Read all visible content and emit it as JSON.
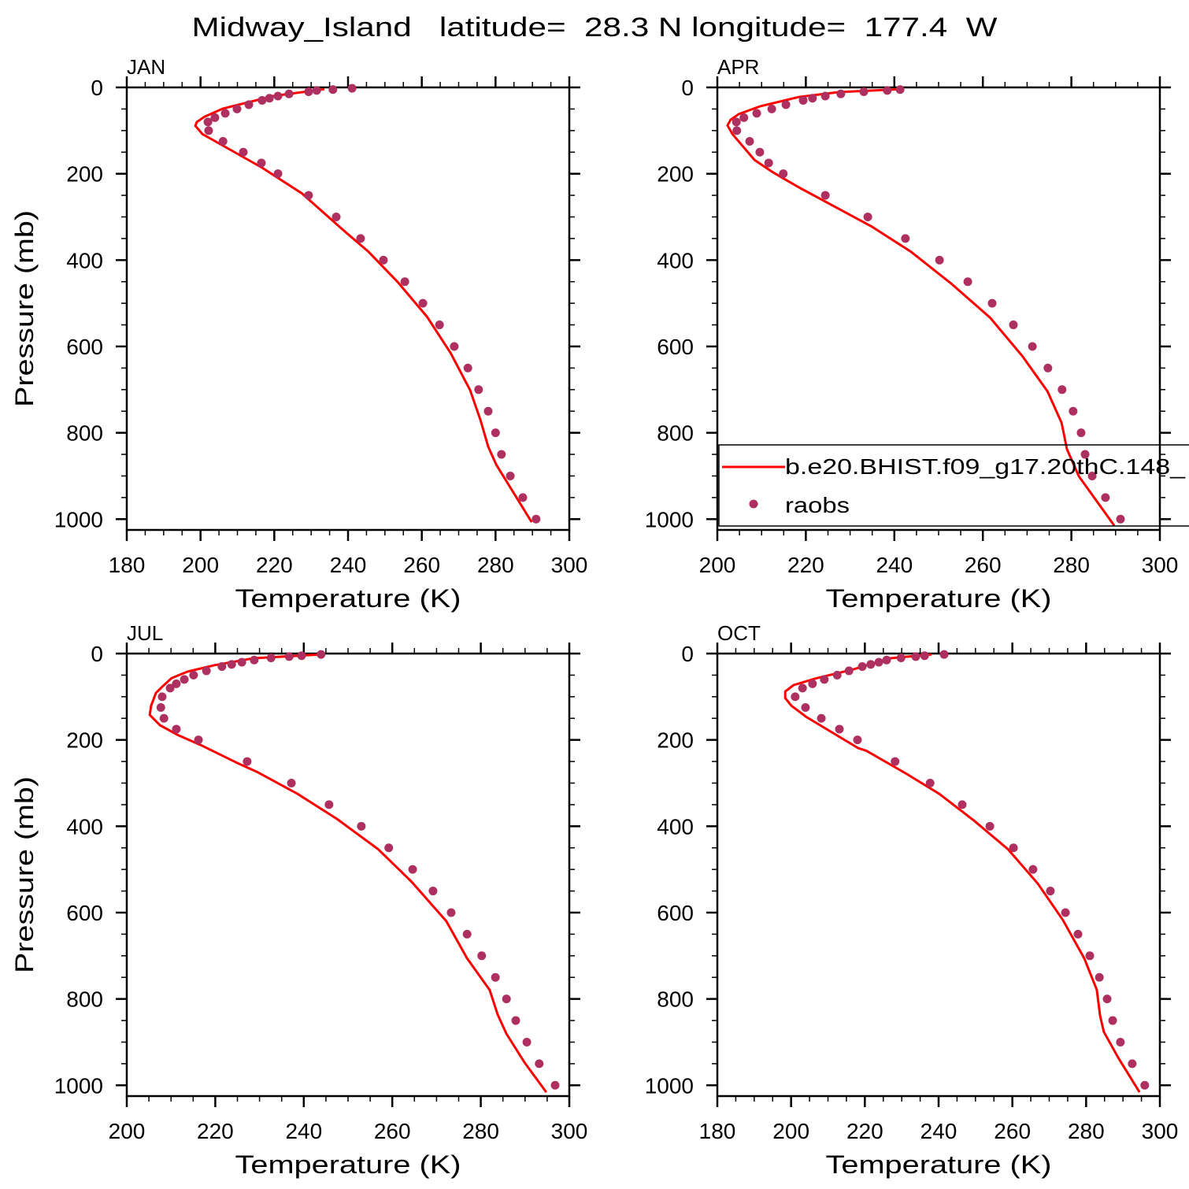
{
  "figure_title": "Midway_Island   latitude=  28.3 N longitude=  177.4  W",
  "colors": {
    "model": "#ff0000",
    "raobs": "#ad3060",
    "axes": "#000000"
  },
  "legend": {
    "panel": "APR",
    "entries": [
      {
        "label": "b.e20.BHIST.f09_g17.20thC.148_",
        "marker": "line",
        "color": "#ff0000"
      },
      {
        "label": "raobs",
        "marker": "dot",
        "color": "#ad3060"
      }
    ]
  },
  "chart_data": [
    {
      "type": "line",
      "title": "JAN",
      "xlabel": "Temperature (K)",
      "ylabel": "Pressure (mb)",
      "xlim": [
        180,
        300
      ],
      "ylim": [
        0,
        1025
      ],
      "y_inverted": true,
      "xticks": [
        180,
        200,
        220,
        240,
        260,
        280,
        300
      ],
      "yticks": [
        0,
        200,
        400,
        600,
        800,
        1000
      ],
      "series": [
        {
          "name": "b.e20.BHIST.f09_g17.20thC.148_",
          "style": "line",
          "T": [
            233.6,
            219.7,
            206.1,
            201.1,
            199.0,
            198.6,
            200.5,
            206.1,
            216.7,
            227.4,
            238.9,
            245.6,
            253.5,
            261.4,
            267.8,
            273.1,
            275.9,
            278.0,
            280.2,
            289.8
          ],
          "p": [
            4,
            20,
            49,
            68,
            80,
            89,
            108,
            135,
            186,
            245,
            332,
            381,
            451,
            531,
            615,
            701,
            770,
            832,
            874,
            1007
          ]
        },
        {
          "name": "raobs",
          "style": "dots",
          "T": [
            241.1,
            235.9,
            231.5,
            229.3,
            224.0,
            221.0,
            218.7,
            216.7,
            213.1,
            209.9,
            206.7,
            203.9,
            202.0,
            202.2,
            206.1,
            211.6,
            216.5,
            221.0,
            229.3,
            236.8,
            243.4,
            249.6,
            255.4,
            260.3,
            264.8,
            268.8,
            272.5,
            275.4,
            278.0,
            280.0,
            281.6,
            284.0,
            287.4,
            291.0
          ],
          "p": [
            2,
            5,
            7,
            10,
            15,
            20,
            25,
            30,
            40,
            50,
            60,
            70,
            80,
            100,
            125,
            150,
            175,
            200,
            250,
            300,
            350,
            400,
            450,
            500,
            550,
            600,
            650,
            700,
            750,
            800,
            850,
            900,
            950,
            1000
          ]
        }
      ]
    },
    {
      "type": "line",
      "title": "APR",
      "xlabel": "Temperature (K)",
      "ylabel": "",
      "xlim": [
        200,
        300
      ],
      "ylim": [
        0,
        1025
      ],
      "y_inverted": true,
      "xticks": [
        200,
        220,
        240,
        260,
        280,
        300
      ],
      "yticks": [
        0,
        200,
        400,
        600,
        800,
        1000
      ],
      "series": [
        {
          "name": "b.e20.BHIST.f09_g17.20thC.148_",
          "style": "line",
          "T": [
            241.3,
            227.4,
            218.5,
            209.6,
            204.8,
            203.0,
            202.3,
            203.4,
            208.4,
            212.3,
            218.5,
            230.5,
            235.0,
            243.8,
            252.8,
            261.6,
            268.9,
            274.6,
            277.8,
            279.0,
            281.7,
            289.7
          ],
          "p": [
            4,
            11,
            22,
            44,
            62,
            75,
            88,
            108,
            168,
            195,
            232,
            298,
            323,
            381,
            454,
            533,
            622,
            704,
            777,
            838,
            901,
            1015
          ]
        },
        {
          "name": "raobs",
          "style": "dots",
          "T": [
            241.3,
            238.4,
            233.1,
            227.9,
            224.4,
            221.5,
            219.4,
            215.5,
            212.3,
            208.9,
            206.0,
            204.3,
            204.4,
            207.3,
            209.6,
            211.6,
            214.9,
            224.4,
            234.0,
            242.5,
            250.2,
            256.6,
            262.1,
            266.9,
            271.2,
            274.7,
            277.9,
            280.4,
            282.2,
            283.1,
            284.7,
            287.7,
            291.1
          ],
          "p": [
            5,
            7,
            10,
            15,
            20,
            25,
            30,
            40,
            50,
            60,
            70,
            80,
            100,
            125,
            150,
            175,
            200,
            250,
            300,
            350,
            400,
            450,
            500,
            550,
            600,
            650,
            700,
            750,
            800,
            850,
            900,
            950,
            1000
          ]
        }
      ]
    },
    {
      "type": "line",
      "title": "JUL",
      "xlabel": "Temperature (K)",
      "ylabel": "Pressure (mb)",
      "xlim": [
        200,
        300
      ],
      "ylim": [
        0,
        1025
      ],
      "y_inverted": true,
      "xticks": [
        200,
        220,
        240,
        260,
        280,
        300
      ],
      "yticks": [
        0,
        200,
        400,
        600,
        800,
        1000
      ],
      "series": [
        {
          "name": "b.e20.BHIST.f09_g17.20thC.148_",
          "style": "line",
          "T": [
            243.9,
            228.6,
            219.8,
            213.7,
            210.1,
            208.2,
            206.6,
            205.5,
            205.2,
            207.5,
            211.4,
            216.7,
            224.7,
            229.6,
            238.6,
            247.5,
            256.8,
            264.4,
            272.2,
            276.9,
            282.0,
            283.8,
            285.8,
            290.0,
            294.8
          ],
          "p": [
            2,
            11,
            27,
            42,
            57,
            75,
            91,
            121,
            142,
            166,
            188,
            212,
            252,
            275,
            325,
            383,
            453,
            529,
            620,
            706,
            779,
            836,
            881,
            949,
            1016
          ]
        },
        {
          "name": "raobs",
          "style": "dots",
          "T": [
            243.9,
            239.5,
            236.7,
            232.6,
            228.8,
            226.0,
            223.7,
            221.5,
            218.0,
            215.1,
            213.0,
            211.2,
            209.8,
            208.0,
            207.7,
            208.4,
            211.2,
            216.2,
            227.2,
            237.2,
            245.7,
            253.0,
            259.2,
            264.6,
            269.2,
            273.3,
            276.9,
            280.2,
            283.3,
            285.8,
            287.9,
            290.4,
            293.2,
            296.8
          ],
          "p": [
            2,
            5,
            7,
            10,
            15,
            20,
            25,
            30,
            40,
            50,
            60,
            70,
            80,
            100,
            125,
            150,
            175,
            200,
            250,
            300,
            350,
            400,
            450,
            500,
            550,
            600,
            650,
            700,
            750,
            800,
            850,
            900,
            950,
            1000
          ]
        }
      ]
    },
    {
      "type": "line",
      "title": "OCT",
      "xlabel": "Temperature (K)",
      "ylabel": "",
      "xlim": [
        180,
        300
      ],
      "ylim": [
        0,
        1025
      ],
      "y_inverted": true,
      "xticks": [
        180,
        200,
        220,
        240,
        260,
        280,
        300
      ],
      "yticks": [
        0,
        200,
        400,
        600,
        800,
        1000
      ],
      "series": [
        {
          "name": "b.e20.BHIST.f09_g17.20thC.148_",
          "style": "line",
          "T": [
            238.1,
            226.8,
            216.7,
            206.9,
            200.7,
            198.4,
            198.4,
            200.1,
            204.0,
            218.2,
            220.4,
            231.0,
            240.2,
            249.6,
            258.8,
            266.9,
            273.7,
            279.5,
            282.9,
            283.8,
            284.8,
            288.7,
            294.5
          ],
          "p": [
            2,
            11,
            37,
            57,
            73,
            88,
            103,
            121,
            146,
            219,
            225,
            277,
            325,
            387,
            453,
            533,
            617,
            706,
            779,
            839,
            876,
            936,
            1016
          ]
        },
        {
          "name": "raobs",
          "style": "dots",
          "T": [
            241.5,
            236.2,
            233.8,
            229.8,
            225.9,
            223.8,
            221.6,
            219.3,
            215.7,
            212.5,
            209.0,
            205.8,
            203.1,
            201.1,
            203.9,
            208.2,
            213.1,
            218.0,
            228.2,
            237.7,
            246.4,
            253.9,
            260.3,
            265.6,
            270.3,
            274.4,
            277.8,
            281.0,
            283.6,
            285.7,
            287.2,
            289.3,
            292.5,
            295.9
          ],
          "p": [
            2,
            5,
            7,
            10,
            15,
            20,
            25,
            30,
            40,
            50,
            60,
            70,
            80,
            100,
            125,
            150,
            175,
            200,
            250,
            300,
            350,
            400,
            450,
            500,
            550,
            600,
            650,
            700,
            750,
            800,
            850,
            900,
            950,
            1000
          ]
        }
      ]
    }
  ]
}
